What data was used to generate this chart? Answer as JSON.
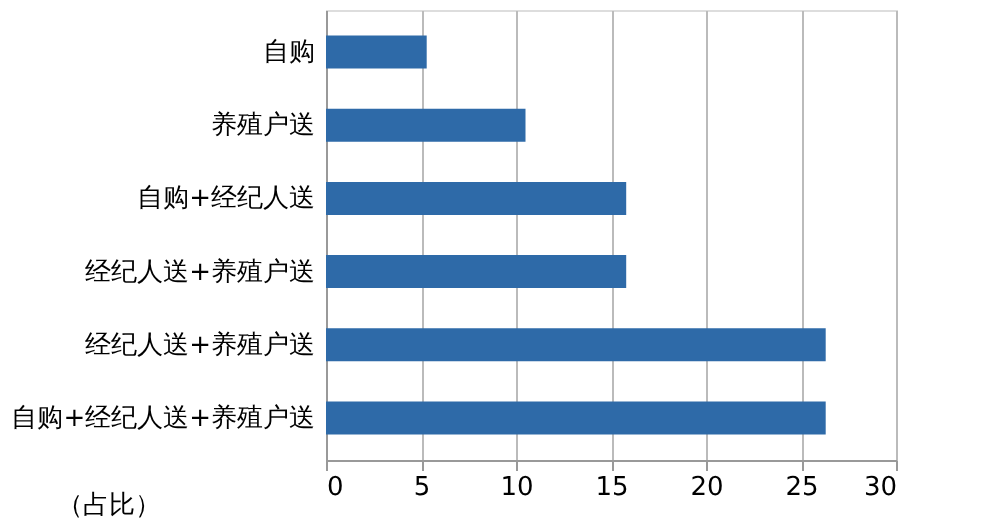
{
  "chart_data": {
    "type": "bar",
    "orientation": "horizontal",
    "xlabel": "（占比）",
    "categories": [
      "自购",
      "养殖户送",
      "自购+经纪人送",
      "经纪人送+养殖户送",
      "经纪人送+养殖户送",
      "自购+经纪人送+养殖户送"
    ],
    "values": [
      5.3,
      10.5,
      15.8,
      15.8,
      26.3,
      26.3
    ],
    "color": "#2e6aa8",
    "xlim": [
      0,
      30
    ],
    "xticks": [
      0,
      5,
      10,
      15,
      20,
      25,
      30
    ],
    "grid": "x"
  }
}
